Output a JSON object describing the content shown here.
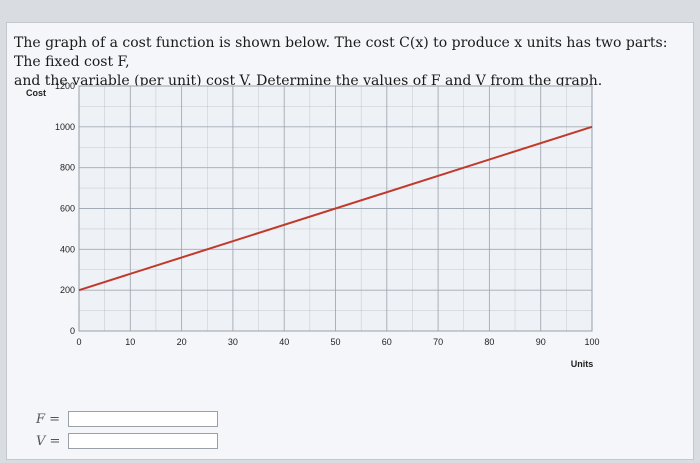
{
  "question": {
    "line1": "The graph of a cost function is shown below. The cost C(x) to produce x units has two parts: The fixed cost F,",
    "line2": "and the variable (per unit) cost V. Determine the values of F and V from the graph."
  },
  "chart_data": {
    "type": "line",
    "xlabel": "Units",
    "ylabel": "Cost",
    "xlim": [
      0,
      100
    ],
    "ylim": [
      0,
      1200
    ],
    "x_ticks": [
      0,
      10,
      20,
      30,
      40,
      50,
      60,
      70,
      80,
      90,
      100
    ],
    "y_ticks": [
      0,
      200,
      400,
      600,
      800,
      1000,
      1200
    ],
    "grid": true,
    "series": [
      {
        "x": [
          0,
          100
        ],
        "y": [
          200,
          1000
        ]
      }
    ],
    "colors": {
      "line": "#c0392b",
      "grid": "#9aa3ad",
      "background": "#eef1f5"
    }
  },
  "answers": {
    "f_label": "F =",
    "v_label": "V =",
    "f_value": "",
    "v_value": ""
  }
}
